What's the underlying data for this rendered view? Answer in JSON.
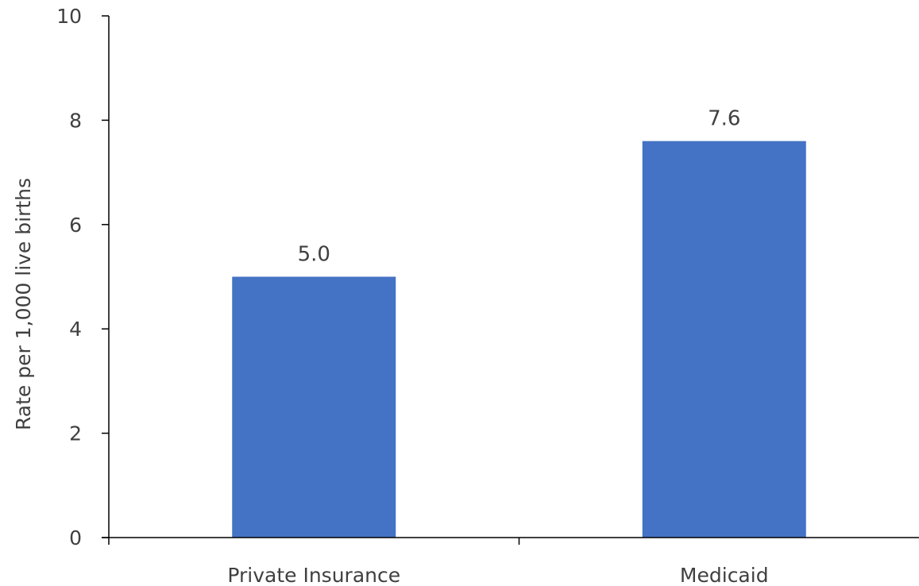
{
  "chart_data": {
    "type": "bar",
    "title": "",
    "xlabel": "",
    "ylabel": "Rate per 1,000 live births",
    "categories": [
      "Private Insurance",
      "Medicaid"
    ],
    "values": [
      5.0,
      7.6
    ],
    "data_labels": [
      "5.0",
      "7.6"
    ],
    "ylim": [
      0,
      10
    ],
    "yticks": [
      0,
      2,
      4,
      6,
      8,
      10
    ],
    "ytick_labels": [
      "0",
      "2",
      "4",
      "6",
      "8",
      "10"
    ],
    "grid": false,
    "legend": "none",
    "colors": {
      "bar": "#4472c4",
      "axis": "#000000",
      "text": "#404040"
    }
  }
}
